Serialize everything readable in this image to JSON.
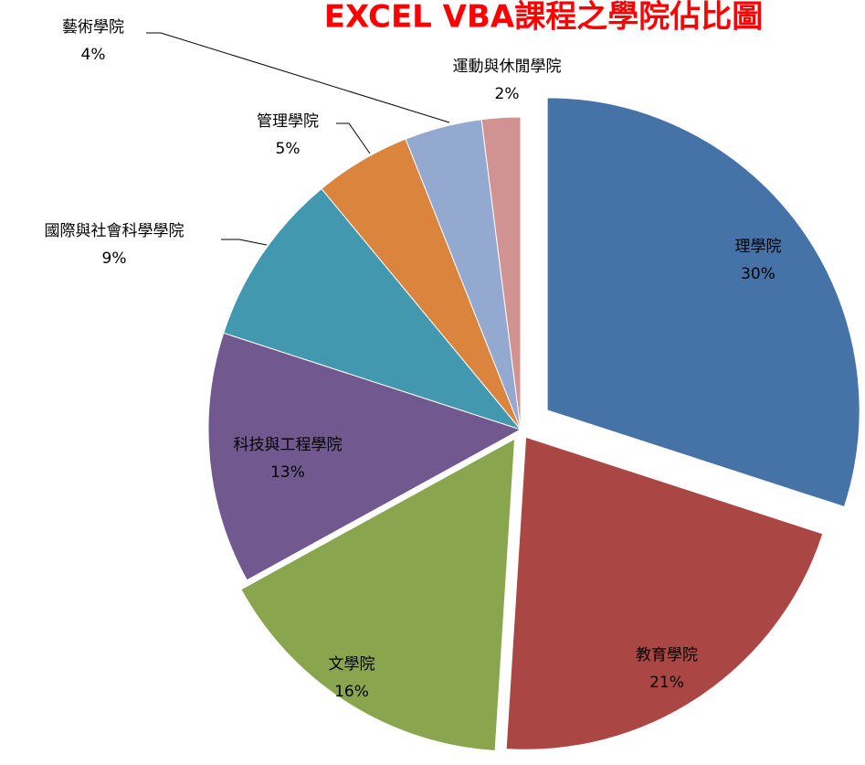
{
  "chart_data": {
    "type": "pie",
    "title": "EXCEL VBA課程之學院佔比圖",
    "categories": [
      "理學院",
      "教育學院",
      "文學院",
      "科技與工程學院",
      "國際與社會科學學院",
      "管理學院",
      "藝術學院",
      "運動與休閒學院"
    ],
    "values": [
      30,
      21,
      16,
      13,
      9,
      5,
      4,
      2
    ],
    "value_labels": [
      "30%",
      "21%",
      "16%",
      "13%",
      "9%",
      "5%",
      "4%",
      "2%"
    ],
    "colors": [
      "#4572a7",
      "#aa4643",
      "#89a54e",
      "#71588f",
      "#4198af",
      "#db843d",
      "#93a9cf",
      "#d19392"
    ]
  }
}
